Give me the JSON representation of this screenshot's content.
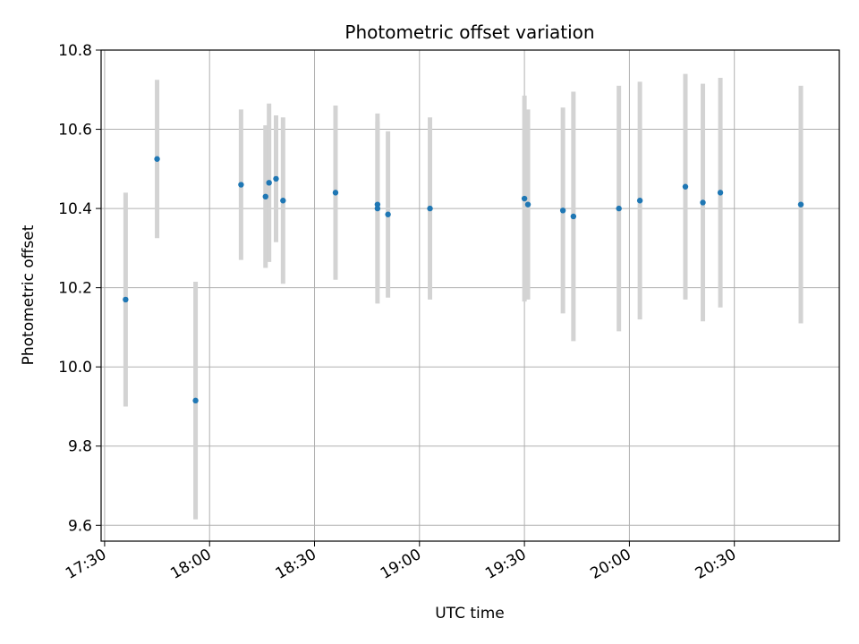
{
  "chart_data": {
    "type": "scatter",
    "title": "Photometric offset variation",
    "xlabel": "UTC time",
    "ylabel": "Photometric offset",
    "xlim": [
      "17:29",
      "21:00"
    ],
    "ylim": [
      9.56,
      10.8
    ],
    "x_ticks": [
      "17:30",
      "18:00",
      "18:30",
      "19:00",
      "19:30",
      "20:00",
      "20:30"
    ],
    "y_ticks": [
      9.6,
      9.8,
      10.0,
      10.2,
      10.4,
      10.6,
      10.8
    ],
    "y_tick_labels": [
      "9.6",
      "9.8",
      "10.0",
      "10.2",
      "10.4",
      "10.6",
      "10.8"
    ],
    "grid": true,
    "marker_color": "#1f77b4",
    "errorbar_color": "#d3d3d3",
    "points": [
      {
        "x": "17:36",
        "y": 10.17,
        "err": 0.27
      },
      {
        "x": "17:45",
        "y": 10.525,
        "err": 0.2
      },
      {
        "x": "17:56",
        "y": 9.915,
        "err": 0.3
      },
      {
        "x": "18:09",
        "y": 10.46,
        "err": 0.19
      },
      {
        "x": "18:16",
        "y": 10.43,
        "err": 0.18
      },
      {
        "x": "18:17",
        "y": 10.465,
        "err": 0.2
      },
      {
        "x": "18:19",
        "y": 10.475,
        "err": 0.16
      },
      {
        "x": "18:21",
        "y": 10.42,
        "err": 0.21
      },
      {
        "x": "18:36",
        "y": 10.44,
        "err": 0.22
      },
      {
        "x": "18:48",
        "y": 10.41,
        "err": 0.21
      },
      {
        "x": "18:48",
        "y": 10.4,
        "err": 0.24
      },
      {
        "x": "18:51",
        "y": 10.385,
        "err": 0.21
      },
      {
        "x": "19:03",
        "y": 10.4,
        "err": 0.23
      },
      {
        "x": "19:30",
        "y": 10.425,
        "err": 0.26
      },
      {
        "x": "19:31",
        "y": 10.41,
        "err": 0.24
      },
      {
        "x": "19:41",
        "y": 10.395,
        "err": 0.26
      },
      {
        "x": "19:44",
        "y": 10.38,
        "err": 0.315
      },
      {
        "x": "19:57",
        "y": 10.4,
        "err": 0.31
      },
      {
        "x": "20:03",
        "y": 10.42,
        "err": 0.3
      },
      {
        "x": "20:16",
        "y": 10.455,
        "err": 0.285
      },
      {
        "x": "20:21",
        "y": 10.415,
        "err": 0.3
      },
      {
        "x": "20:26",
        "y": 10.44,
        "err": 0.29
      },
      {
        "x": "20:49",
        "y": 10.41,
        "err": 0.3
      }
    ]
  }
}
